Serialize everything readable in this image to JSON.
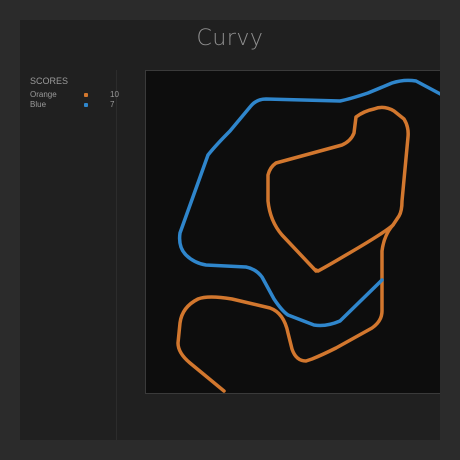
{
  "app": {
    "title": "Curvy"
  },
  "scores": {
    "label": "SCORES",
    "players": [
      {
        "name": "Orange",
        "score": "10",
        "color": "#d2772e"
      },
      {
        "name": "Blue",
        "score": "7",
        "color": "#2f86cc"
      }
    ]
  },
  "trails": {
    "orange": {
      "color": "#d2772e"
    },
    "blue": {
      "color": "#2f86cc"
    }
  }
}
